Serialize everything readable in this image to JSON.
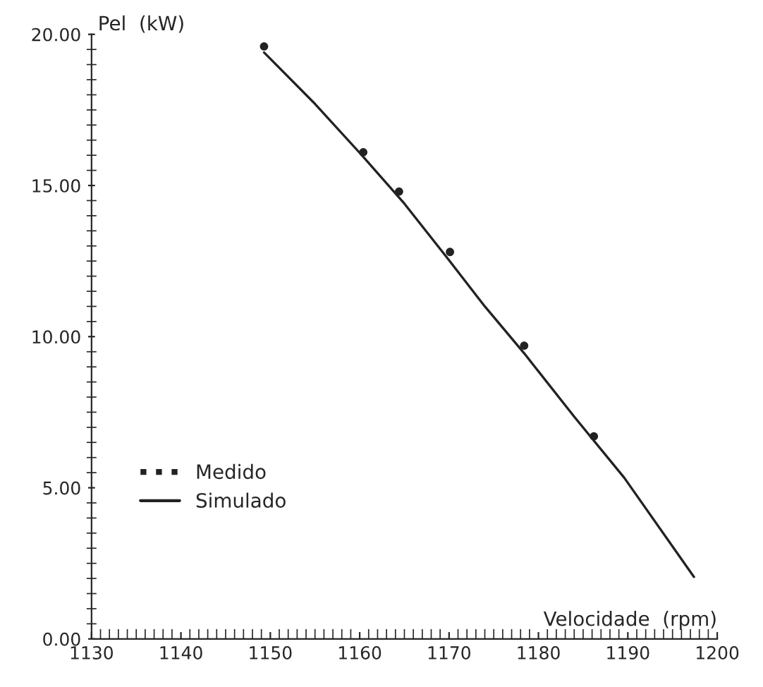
{
  "chart_data": {
    "type": "scatter",
    "xlabel": "Velocidade  (rpm)",
    "ylabel": "Pel  (kW)",
    "xlim": [
      1130,
      1200
    ],
    "xticks": [
      1130,
      1140,
      1150,
      1160,
      1170,
      1180,
      1190,
      1200
    ],
    "ylim": [
      0,
      20
    ],
    "yticks": [
      {
        "value": 0,
        "label": "0.00"
      },
      {
        "value": 5,
        "label": "5.00"
      },
      {
        "value": 10,
        "label": "10.00"
      },
      {
        "value": 15,
        "label": "15.00"
      },
      {
        "value": 20,
        "label": "20.00"
      }
    ],
    "grid": false,
    "legend": "left",
    "series": [
      {
        "name": "Medido",
        "color": "#222222",
        "marker": "circle",
        "x": [
          1149.3,
          1160.4,
          1164.4,
          1170.1,
          1178.4,
          1186.2
        ],
        "values": [
          19.6,
          16.1,
          14.8,
          12.8,
          9.7,
          6.7
        ]
      },
      {
        "name": "Simulado",
        "type": "line",
        "color": "#222222",
        "marker": "none",
        "line_style": "solid",
        "x": [
          1149.3,
          1155.0,
          1160.4,
          1165.0,
          1169.8,
          1174.0,
          1178.4,
          1184.0,
          1189.6,
          1197.4
        ],
        "values": [
          19.4,
          17.7,
          15.95,
          14.4,
          12.6,
          11.0,
          9.45,
          7.35,
          5.33,
          2.05
        ]
      }
    ]
  }
}
